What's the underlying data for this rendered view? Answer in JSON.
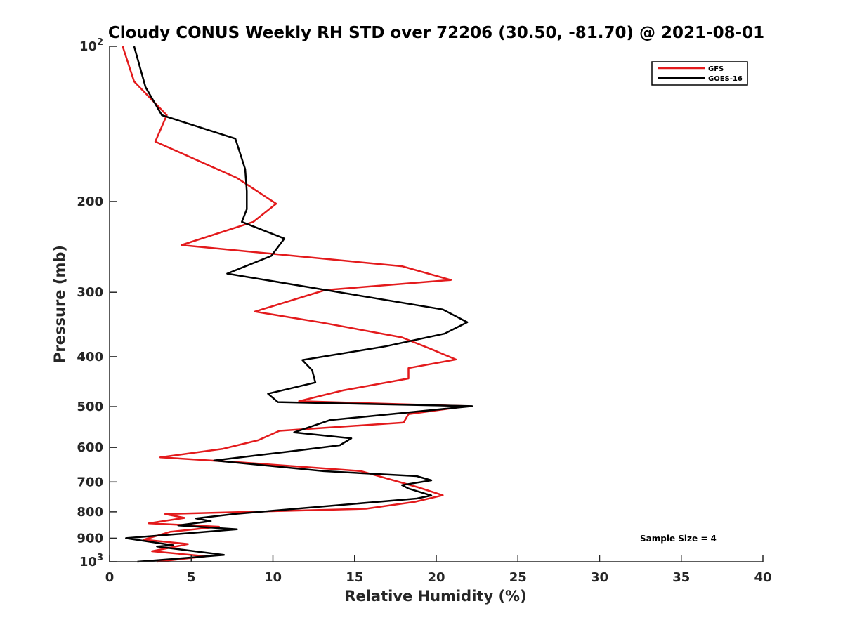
{
  "chart_data": {
    "type": "line",
    "title": "Cloudy CONUS Weekly RH STD over 72206 (30.50, -81.70) @ 2021-08-01",
    "xlabel": "Relative Humidity (%)",
    "ylabel": "Pressure (mb)",
    "xlim": [
      0,
      40
    ],
    "ylim": [
      100,
      1000
    ],
    "y_scale": "log",
    "y_reversed": true,
    "grid": false,
    "legend_position": "top-right",
    "x_ticks": [
      {
        "value": 0,
        "label": "0"
      },
      {
        "value": 5,
        "label": "5"
      },
      {
        "value": 10,
        "label": "10"
      },
      {
        "value": 15,
        "label": "15"
      },
      {
        "value": 20,
        "label": "20"
      },
      {
        "value": 25,
        "label": "25"
      },
      {
        "value": 30,
        "label": "30"
      },
      {
        "value": 35,
        "label": "35"
      },
      {
        "value": 40,
        "label": "40"
      }
    ],
    "y_ticks": [
      {
        "value": 100,
        "base": "10",
        "exp": "2"
      },
      {
        "value": 200,
        "label": "200"
      },
      {
        "value": 300,
        "label": "300"
      },
      {
        "value": 400,
        "label": "400"
      },
      {
        "value": 500,
        "label": "500"
      },
      {
        "value": 600,
        "label": "600"
      },
      {
        "value": 700,
        "label": "700"
      },
      {
        "value": 800,
        "label": "800"
      },
      {
        "value": 900,
        "label": "900"
      },
      {
        "value": 1000,
        "base": "10",
        "exp": "3"
      }
    ],
    "series": [
      {
        "name": "GFS",
        "color": "#e31a1c",
        "points": [
          [
            0.8,
            100
          ],
          [
            1.5,
            117
          ],
          [
            3.5,
            136
          ],
          [
            2.8,
            153
          ],
          [
            7.8,
            180
          ],
          [
            10.2,
            202
          ],
          [
            8.8,
            219
          ],
          [
            4.4,
            243
          ],
          [
            17.9,
            267
          ],
          [
            20.9,
            284
          ],
          [
            13.2,
            297
          ],
          [
            8.9,
            327
          ],
          [
            13.1,
            344
          ],
          [
            17.9,
            367
          ],
          [
            19.8,
            388
          ],
          [
            21.2,
            405
          ],
          [
            18.3,
            421
          ],
          [
            18.3,
            441
          ],
          [
            14.3,
            465
          ],
          [
            11.6,
            488
          ],
          [
            21.9,
            499
          ],
          [
            18.3,
            517
          ],
          [
            18.0,
            537
          ],
          [
            10.4,
            557
          ],
          [
            9.1,
            581
          ],
          [
            6.9,
            604
          ],
          [
            3.1,
            627
          ],
          [
            7.9,
            641
          ],
          [
            15.4,
            667
          ],
          [
            18.9,
            717
          ],
          [
            20.4,
            743
          ],
          [
            18.7,
            765
          ],
          [
            15.7,
            789
          ],
          [
            3.4,
            808
          ],
          [
            4.6,
            822
          ],
          [
            2.4,
            842
          ],
          [
            6.7,
            855
          ],
          [
            3.7,
            875
          ],
          [
            2.1,
            906
          ],
          [
            4.8,
            924
          ],
          [
            2.6,
            954
          ],
          [
            5.9,
            976
          ],
          [
            2.9,
            1000
          ]
        ]
      },
      {
        "name": "GOES-16",
        "color": "#000000",
        "points": [
          [
            1.5,
            100
          ],
          [
            2.2,
            120
          ],
          [
            3.2,
            136
          ],
          [
            7.7,
            151
          ],
          [
            8.3,
            173
          ],
          [
            8.4,
            191
          ],
          [
            8.4,
            207
          ],
          [
            8.1,
            219
          ],
          [
            10.7,
            236
          ],
          [
            9.9,
            255
          ],
          [
            7.2,
            276
          ],
          [
            20.4,
            324
          ],
          [
            21.9,
            343
          ],
          [
            20.5,
            361
          ],
          [
            16.9,
            382
          ],
          [
            11.8,
            406
          ],
          [
            12.4,
            425
          ],
          [
            12.6,
            449
          ],
          [
            9.7,
            472
          ],
          [
            10.3,
            490
          ],
          [
            22.2,
            499
          ],
          [
            13.5,
            531
          ],
          [
            11.3,
            561
          ],
          [
            14.8,
            576
          ],
          [
            14.1,
            594
          ],
          [
            11.0,
            611
          ],
          [
            6.4,
            636
          ],
          [
            13.1,
            667
          ],
          [
            18.8,
            682
          ],
          [
            19.7,
            695
          ],
          [
            17.9,
            710
          ],
          [
            18.3,
            721
          ],
          [
            19.7,
            744
          ],
          [
            18.8,
            754
          ],
          [
            7.6,
            808
          ],
          [
            5.3,
            824
          ],
          [
            6.2,
            834
          ],
          [
            4.2,
            850
          ],
          [
            7.8,
            865
          ],
          [
            1.0,
            900
          ],
          [
            3.9,
            929
          ],
          [
            2.9,
            934
          ],
          [
            7.0,
            970
          ],
          [
            1.7,
            1000
          ]
        ]
      }
    ],
    "annotation": "Sample Size = 4"
  }
}
